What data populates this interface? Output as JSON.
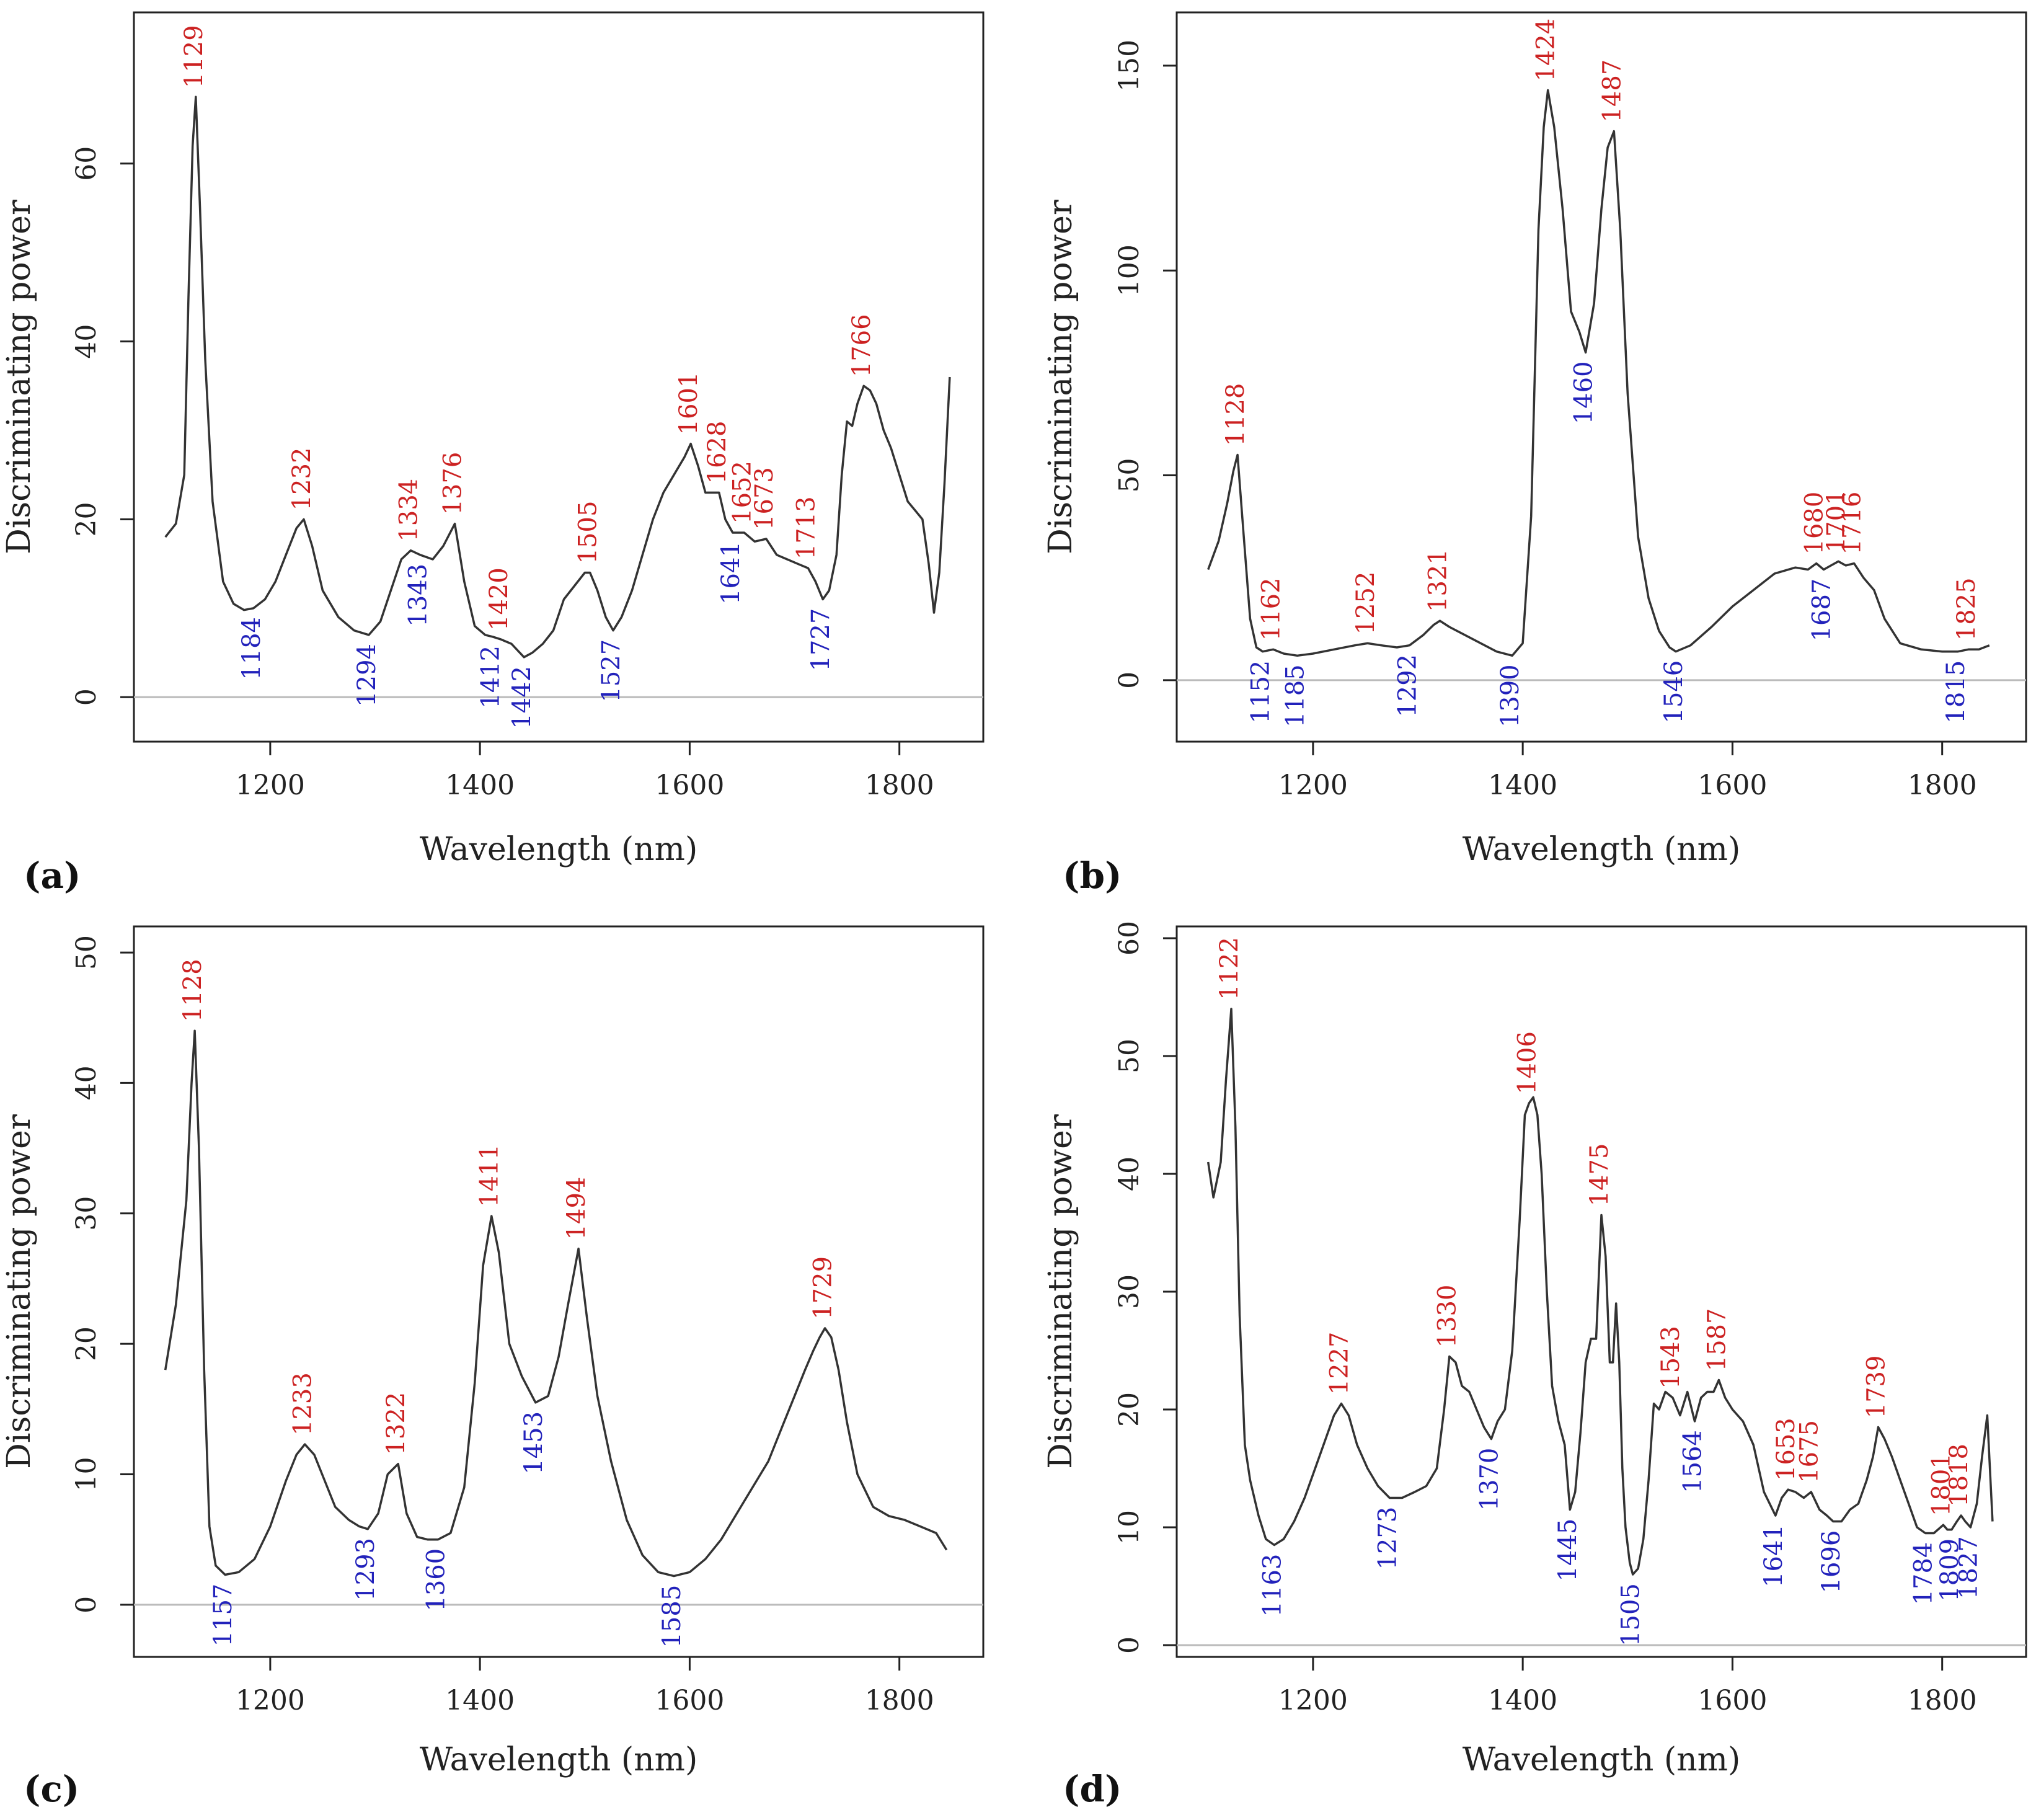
{
  "figure": {
    "panel_labels": [
      "(a)",
      "(b)",
      "(c)",
      "(d)"
    ]
  },
  "colors": {
    "line": "#333333",
    "peak": "#cc2222",
    "valley": "#2222bb",
    "zero_line": "#bbbbbb",
    "axis": "#222222"
  },
  "chart_data": [
    {
      "type": "line",
      "panel": "(a)",
      "title": "",
      "xlabel": "Wavelength (nm)",
      "ylabel": "Discriminating power",
      "xlim": [
        1070,
        1880
      ],
      "ylim": [
        -5,
        77
      ],
      "xticks": [
        1200,
        1400,
        1600,
        1800
      ],
      "yticks": [
        0,
        20,
        40,
        60
      ],
      "grid": false,
      "zero_line": true,
      "series": [
        {
          "x": [
            1100,
            1110,
            1118,
            1122,
            1126,
            1129,
            1133,
            1138,
            1145,
            1155,
            1165,
            1175,
            1184,
            1195,
            1205,
            1215,
            1225,
            1232,
            1240,
            1250,
            1265,
            1280,
            1294,
            1305,
            1315,
            1325,
            1334,
            1343,
            1355,
            1365,
            1376,
            1385,
            1395,
            1405,
            1412,
            1420,
            1430,
            1442,
            1450,
            1460,
            1470,
            1480,
            1490,
            1500,
            1505,
            1512,
            1520,
            1527,
            1535,
            1545,
            1555,
            1565,
            1575,
            1585,
            1595,
            1601,
            1608,
            1615,
            1622,
            1628,
            1634,
            1641,
            1652,
            1662,
            1673,
            1683,
            1693,
            1703,
            1713,
            1720,
            1727,
            1733,
            1740,
            1745,
            1750,
            1755,
            1760,
            1766,
            1772,
            1778,
            1785,
            1792,
            1800,
            1808,
            1815,
            1822,
            1828,
            1833,
            1838,
            1843,
            1848
          ],
          "y": [
            18,
            19.5,
            25,
            45,
            62,
            67.5,
            55,
            38,
            22,
            13,
            10.5,
            9.8,
            10,
            11,
            13,
            16,
            19,
            20,
            17,
            12,
            9,
            7.5,
            7,
            8.5,
            12,
            15.5,
            16.5,
            16,
            15.5,
            17,
            19.5,
            13,
            8,
            7,
            6.8,
            6.5,
            6,
            4.5,
            5,
            6,
            7.5,
            11,
            12.5,
            14,
            14,
            12,
            9,
            7.5,
            9,
            12,
            16,
            20,
            23,
            25,
            27,
            28.5,
            26,
            23,
            23,
            23,
            20,
            18.5,
            18.5,
            17.5,
            17.8,
            16,
            15.5,
            15,
            14.5,
            13,
            11,
            12,
            16,
            25,
            31,
            30.5,
            33,
            35,
            34.5,
            33,
            30,
            28,
            25,
            22,
            21,
            20,
            15,
            9.5,
            14,
            24,
            36
          ]
        }
      ],
      "peak_labels": [
        1129,
        1232,
        1334,
        1376,
        1420,
        1505,
        1601,
        1628,
        1652,
        1673,
        1713,
        1766
      ],
      "valley_labels": [
        1184,
        1294,
        1343,
        1412,
        1442,
        1527,
        1641,
        1727
      ]
    },
    {
      "type": "line",
      "panel": "(b)",
      "title": "",
      "xlabel": "Wavelength (nm)",
      "ylabel": "Discriminating power",
      "xlim": [
        1070,
        1880
      ],
      "ylim": [
        -15,
        163
      ],
      "xticks": [
        1200,
        1400,
        1600,
        1800
      ],
      "yticks": [
        0,
        50,
        100,
        150
      ],
      "grid": false,
      "zero_line": true,
      "series": [
        {
          "x": [
            1100,
            1110,
            1118,
            1124,
            1128,
            1134,
            1140,
            1146,
            1152,
            1162,
            1172,
            1185,
            1200,
            1220,
            1240,
            1252,
            1265,
            1280,
            1292,
            1305,
            1315,
            1321,
            1330,
            1345,
            1360,
            1375,
            1390,
            1400,
            1408,
            1415,
            1420,
            1424,
            1430,
            1438,
            1446,
            1454,
            1460,
            1468,
            1475,
            1481,
            1487,
            1493,
            1500,
            1510,
            1520,
            1530,
            1540,
            1546,
            1560,
            1580,
            1600,
            1620,
            1640,
            1660,
            1672,
            1680,
            1687,
            1694,
            1701,
            1708,
            1716,
            1725,
            1735,
            1745,
            1760,
            1780,
            1800,
            1815,
            1825,
            1835,
            1845
          ],
          "y": [
            27,
            34,
            43,
            51,
            55,
            35,
            15,
            8,
            7,
            7.5,
            6.5,
            6,
            6.5,
            7.5,
            8.5,
            9,
            8.5,
            8,
            8.5,
            11,
            13.5,
            14.5,
            13,
            11,
            9,
            7,
            6,
            9,
            40,
            110,
            135,
            144,
            135,
            115,
            90,
            85,
            80,
            92,
            115,
            130,
            134,
            110,
            70,
            35,
            20,
            12,
            8,
            7,
            8.5,
            13,
            18,
            22,
            26,
            27.5,
            27,
            28.5,
            27,
            28,
            29,
            28,
            28.5,
            25,
            22,
            15,
            9,
            7.5,
            7,
            7,
            7.5,
            7.5,
            8.5
          ]
        }
      ],
      "peak_labels": [
        1128,
        1162,
        1252,
        1321,
        1424,
        1487,
        1680,
        1701,
        1716,
        1825
      ],
      "valley_labels": [
        1152,
        1185,
        1292,
        1390,
        1460,
        1546,
        1687,
        1815
      ]
    },
    {
      "type": "line",
      "panel": "(c)",
      "title": "",
      "xlabel": "Wavelength (nm)",
      "ylabel": "Discriminating power",
      "xlim": [
        1070,
        1880
      ],
      "ylim": [
        -4,
        52
      ],
      "xticks": [
        1200,
        1400,
        1600,
        1800
      ],
      "yticks": [
        0,
        10,
        20,
        30,
        40,
        50
      ],
      "grid": false,
      "zero_line": true,
      "series": [
        {
          "x": [
            1100,
            1110,
            1120,
            1125,
            1128,
            1132,
            1137,
            1142,
            1148,
            1157,
            1170,
            1185,
            1200,
            1215,
            1225,
            1233,
            1242,
            1252,
            1262,
            1275,
            1285,
            1293,
            1303,
            1312,
            1322,
            1330,
            1340,
            1350,
            1360,
            1372,
            1385,
            1395,
            1403,
            1411,
            1418,
            1428,
            1440,
            1453,
            1465,
            1475,
            1484,
            1494,
            1502,
            1512,
            1525,
            1540,
            1555,
            1570,
            1585,
            1600,
            1615,
            1630,
            1645,
            1660,
            1675,
            1690,
            1700,
            1710,
            1718,
            1724,
            1729,
            1735,
            1742,
            1750,
            1760,
            1775,
            1790,
            1805,
            1820,
            1835,
            1845
          ],
          "y": [
            18,
            23,
            31,
            40,
            44,
            35,
            18,
            6,
            3,
            2.3,
            2.5,
            3.5,
            6,
            9.5,
            11.5,
            12.3,
            11.5,
            9.5,
            7.5,
            6.5,
            6,
            5.8,
            7,
            10,
            10.8,
            7,
            5.2,
            5,
            5,
            5.5,
            9,
            17,
            26,
            29.8,
            27,
            20,
            17.5,
            15.5,
            16,
            19,
            23,
            27.3,
            22,
            16,
            11,
            6.5,
            3.8,
            2.5,
            2.2,
            2.5,
            3.5,
            5,
            7,
            9,
            11,
            14,
            16,
            18,
            19.5,
            20.5,
            21.2,
            20.5,
            18,
            14,
            10,
            7.5,
            6.8,
            6.5,
            6,
            5.5,
            4.2
          ]
        }
      ],
      "peak_labels": [
        1128,
        1233,
        1322,
        1411,
        1494,
        1729
      ],
      "valley_labels": [
        1157,
        1293,
        1360,
        1453,
        1585
      ]
    },
    {
      "type": "line",
      "panel": "(d)",
      "title": "",
      "xlabel": "Wavelength (nm)",
      "ylabel": "Discriminating power",
      "xlim": [
        1070,
        1880
      ],
      "ylim": [
        -1,
        61
      ],
      "xticks": [
        1200,
        1400,
        1600,
        1800
      ],
      "yticks": [
        0,
        10,
        20,
        30,
        40,
        50,
        60
      ],
      "grid": false,
      "zero_line": true,
      "series": [
        {
          "x": [
            1100,
            1105,
            1112,
            1117,
            1122,
            1126,
            1130,
            1135,
            1140,
            1148,
            1155,
            1163,
            1172,
            1182,
            1192,
            1202,
            1212,
            1220,
            1227,
            1234,
            1242,
            1252,
            1262,
            1273,
            1285,
            1297,
            1308,
            1318,
            1325,
            1330,
            1336,
            1342,
            1349,
            1356,
            1363,
            1370,
            1376,
            1383,
            1390,
            1397,
            1402,
            1406,
            1410,
            1414,
            1418,
            1423,
            1428,
            1434,
            1440,
            1445,
            1450,
            1455,
            1460,
            1465,
            1470,
            1475,
            1479,
            1483,
            1486,
            1489,
            1492,
            1495,
            1498,
            1502,
            1505,
            1510,
            1515,
            1520,
            1525,
            1530,
            1536,
            1543,
            1550,
            1557,
            1564,
            1570,
            1576,
            1582,
            1587,
            1593,
            1600,
            1610,
            1620,
            1630,
            1641,
            1647,
            1653,
            1660,
            1668,
            1675,
            1683,
            1690,
            1696,
            1704,
            1712,
            1720,
            1728,
            1734,
            1739,
            1745,
            1752,
            1760,
            1768,
            1776,
            1784,
            1792,
            1801,
            1805,
            1809,
            1814,
            1818,
            1822,
            1827,
            1833,
            1838,
            1843,
            1848
          ],
          "y": [
            41,
            38,
            41,
            48,
            54,
            44,
            28,
            17,
            14,
            11,
            9,
            8.5,
            9,
            10.5,
            12.5,
            15,
            17.5,
            19.5,
            20.5,
            19.5,
            17,
            15,
            13.5,
            12.5,
            12.5,
            13,
            13.5,
            15,
            20,
            24.5,
            24,
            22,
            21.5,
            20,
            18.5,
            17.5,
            19,
            20,
            25,
            36,
            45,
            46,
            46.5,
            45,
            40,
            30,
            22,
            19,
            17,
            11.5,
            13,
            18,
            24,
            26,
            26,
            36.5,
            33,
            24,
            24,
            29,
            24,
            15,
            10,
            7,
            6,
            6.5,
            9,
            14,
            20.5,
            20,
            21.5,
            21,
            19.5,
            21.5,
            19,
            21,
            21.5,
            21.5,
            22.5,
            21,
            20,
            19,
            17,
            13,
            11,
            12.5,
            13.2,
            13,
            12.5,
            13,
            11.5,
            11,
            10.5,
            10.5,
            11.5,
            12,
            14,
            16,
            18.5,
            17.5,
            16,
            14,
            12,
            10,
            9.5,
            9.5,
            10.2,
            9.8,
            9.8,
            10.5,
            11,
            10.5,
            10,
            12,
            16,
            19.5,
            10.5
          ]
        }
      ],
      "peak_labels": [
        1122,
        1227,
        1330,
        1406,
        1475,
        1543,
        1587,
        1653,
        1675,
        1739,
        1801,
        1818
      ],
      "valley_labels": [
        1163,
        1273,
        1370,
        1445,
        1505,
        1564,
        1641,
        1696,
        1784,
        1809,
        1827
      ]
    }
  ]
}
